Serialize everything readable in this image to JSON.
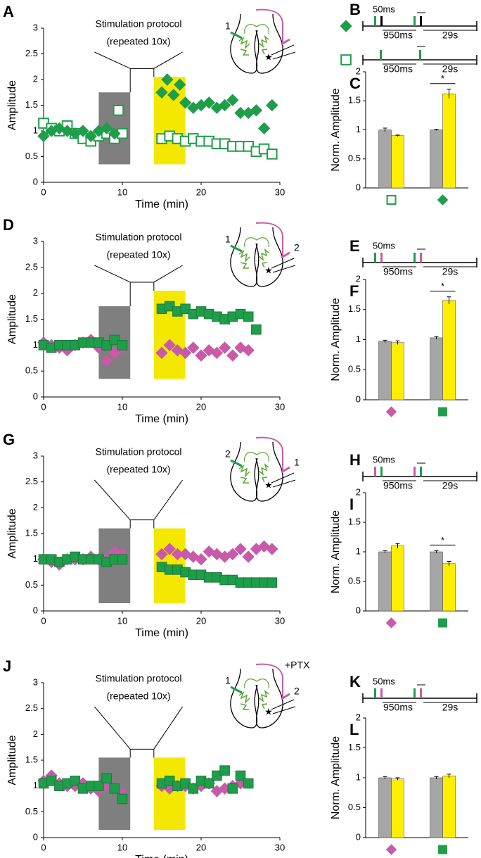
{
  "chart_data": [
    {
      "type": "scatter",
      "panel_label": "A",
      "xlabel": "Time (min)",
      "ylabel": "Amplitude",
      "xlim": [
        0,
        30
      ],
      "xticks": [
        0,
        10,
        20,
        30
      ],
      "ylim": [
        0,
        3
      ],
      "yticks": [
        0,
        0.5,
        1,
        1.5,
        2,
        2.5,
        3
      ],
      "annotations": [
        "Stimulation protocol",
        "(repeated 10x)"
      ],
      "schematic_labels": [
        "1"
      ],
      "spans": [
        {
          "xmin": 7,
          "xmax": 11,
          "ymin": 0.35,
          "ymax": 1.75,
          "color": "#7f7f7f"
        },
        {
          "xmin": 14,
          "xmax": 18,
          "ymin": 0.35,
          "ymax": 2.05,
          "color": "#f4e800"
        }
      ],
      "series": [
        {
          "marker": "square",
          "color": "#1e9e4a",
          "fill": "#ffffff",
          "x": [
            0,
            1,
            2,
            3,
            4,
            5,
            6,
            7,
            8,
            9,
            9.5,
            10,
            15,
            16,
            17,
            18,
            19,
            20,
            21,
            22,
            23,
            24,
            25,
            26,
            27,
            28,
            29
          ],
          "values": [
            1.15,
            1.05,
            1.0,
            1.1,
            0.95,
            0.85,
            0.8,
            0.9,
            0.95,
            0.85,
            1.4,
            0.95,
            0.85,
            0.9,
            0.85,
            0.8,
            0.85,
            0.8,
            0.8,
            0.75,
            0.75,
            0.7,
            0.7,
            0.7,
            0.6,
            0.65,
            0.55
          ]
        },
        {
          "marker": "diamond",
          "color": "#1e9e4a",
          "fill": "#1e9e4a",
          "x": [
            0,
            1,
            2,
            3,
            4,
            5,
            6,
            7,
            8,
            9,
            15,
            15.7,
            16.5,
            17.3,
            18,
            19,
            20,
            21,
            22,
            23,
            24,
            25,
            26,
            27,
            28,
            29
          ],
          "values": [
            0.9,
            1.0,
            1.05,
            1.0,
            0.95,
            1.0,
            0.9,
            1.0,
            1.05,
            0.95,
            1.75,
            2.0,
            1.7,
            1.9,
            1.55,
            1.45,
            1.5,
            1.55,
            1.45,
            1.5,
            1.6,
            1.35,
            1.35,
            1.4,
            1.05,
            1.5
          ]
        }
      ]
    },
    {
      "type": "bar",
      "panel_label": "C",
      "ylabel": "Norm. Amplitude",
      "ylim": [
        0,
        2
      ],
      "yticks": [
        0,
        0.5,
        1,
        1.5,
        2
      ],
      "categories": [
        null,
        null
      ],
      "category_markers": [
        {
          "marker": "square",
          "color": "#1e9e4a",
          "fill": "#ffffff"
        },
        {
          "marker": "diamond",
          "color": "#1e9e4a",
          "fill": "#1e9e4a"
        }
      ],
      "series": [
        {
          "color": "#a6a6a6",
          "values": [
            1.0,
            1.0
          ],
          "errors": [
            0.03,
            0.01
          ]
        },
        {
          "color": "#ffee00",
          "values": [
            0.9,
            1.62
          ],
          "errors": [
            0.01,
            0.08
          ]
        }
      ],
      "significance": {
        "category": 1,
        "label": "*"
      }
    },
    {
      "type": "scatter",
      "panel_label": "D",
      "xlabel": "Time (min)",
      "ylabel": "Amplitude",
      "xlim": [
        0,
        30
      ],
      "xticks": [
        0,
        10,
        20,
        30
      ],
      "ylim": [
        0,
        3
      ],
      "yticks": [
        0,
        0.5,
        1,
        1.5,
        2,
        2.5,
        3
      ],
      "annotations": [
        "Stimulation protocol",
        "(repeated 10x)"
      ],
      "schematic_labels": [
        "1",
        "2"
      ],
      "spans": [
        {
          "xmin": 7,
          "xmax": 11,
          "ymin": 0.35,
          "ymax": 1.75,
          "color": "#7f7f7f"
        },
        {
          "xmin": 14,
          "xmax": 18,
          "ymin": 0.35,
          "ymax": 2.05,
          "color": "#f4e800"
        }
      ],
      "series": [
        {
          "marker": "diamond",
          "color": "#c95aa9",
          "fill": "#c95aa9",
          "x": [
            0,
            1,
            2,
            3,
            4,
            5,
            6,
            7,
            8,
            9,
            10,
            15,
            16,
            17,
            18,
            19,
            20,
            21,
            22,
            23,
            24,
            25,
            26
          ],
          "values": [
            1.05,
            1.0,
            0.95,
            0.9,
            1.0,
            1.05,
            1.1,
            0.95,
            0.7,
            0.85,
            0.95,
            0.85,
            1.0,
            0.9,
            0.85,
            0.95,
            0.8,
            0.9,
            0.85,
            0.95,
            0.8,
            0.95,
            0.9
          ]
        },
        {
          "marker": "square",
          "color": "#1a7a38",
          "fill": "#1e9e4a",
          "x": [
            0,
            1,
            2,
            3,
            4,
            5,
            6,
            7,
            8,
            9,
            10,
            15,
            16,
            17,
            18,
            19,
            20,
            21,
            22,
            23,
            24,
            25,
            26,
            27
          ],
          "values": [
            1.0,
            0.95,
            1.0,
            1.0,
            1.0,
            1.05,
            1.05,
            1.05,
            1.0,
            1.1,
            1.0,
            1.7,
            1.75,
            1.65,
            1.7,
            1.6,
            1.65,
            1.6,
            1.55,
            1.5,
            1.55,
            1.6,
            1.55,
            1.3
          ]
        }
      ]
    },
    {
      "type": "bar",
      "panel_label": "F",
      "ylabel": "Norm. Amplitude",
      "ylim": [
        0,
        2
      ],
      "yticks": [
        0,
        0.5,
        1,
        1.5,
        2
      ],
      "categories": [
        null,
        null
      ],
      "category_markers": [
        {
          "marker": "diamond",
          "color": "#c95aa9",
          "fill": "#c95aa9"
        },
        {
          "marker": "square",
          "color": "#1e9e4a",
          "fill": "#1e9e4a"
        }
      ],
      "series": [
        {
          "color": "#a6a6a6",
          "values": [
            0.97,
            1.03
          ],
          "errors": [
            0.02,
            0.02
          ]
        },
        {
          "color": "#ffee00",
          "values": [
            0.95,
            1.65
          ],
          "errors": [
            0.03,
            0.06
          ]
        }
      ],
      "significance": {
        "category": 1,
        "label": "*"
      }
    },
    {
      "type": "scatter",
      "panel_label": "G",
      "xlabel": "Time (min)",
      "ylabel": "Amplitude",
      "xlim": [
        0,
        30
      ],
      "xticks": [
        0,
        10,
        20,
        30
      ],
      "ylim": [
        0,
        3
      ],
      "yticks": [
        0,
        0.5,
        1,
        1.5,
        2,
        2.5,
        3
      ],
      "annotations": [
        "Stimulation protocol",
        "(repeated 10x)"
      ],
      "schematic_labels": [
        "2",
        "1"
      ],
      "spans": [
        {
          "xmin": 7,
          "xmax": 11,
          "ymin": 0.15,
          "ymax": 1.6,
          "color": "#7f7f7f"
        },
        {
          "xmin": 14,
          "xmax": 18,
          "ymin": 0.15,
          "ymax": 1.6,
          "color": "#f4e800"
        }
      ],
      "series": [
        {
          "marker": "diamond",
          "color": "#c95aa9",
          "fill": "#c95aa9",
          "x": [
            0,
            1,
            2,
            3,
            4,
            5,
            6,
            7,
            8,
            9,
            10,
            15,
            16,
            17,
            18,
            19,
            20,
            21,
            22,
            23,
            24,
            25,
            26,
            27,
            28,
            29
          ],
          "values": [
            1.0,
            0.95,
            0.9,
            1.0,
            1.0,
            1.0,
            1.05,
            1.0,
            1.0,
            1.15,
            1.1,
            1.1,
            1.2,
            1.1,
            1.1,
            1.05,
            1.0,
            1.15,
            1.1,
            1.05,
            1.1,
            1.2,
            1.05,
            1.2,
            1.25,
            1.2
          ]
        },
        {
          "marker": "square",
          "color": "#1a7a38",
          "fill": "#1e9e4a",
          "x": [
            0,
            1,
            2,
            3,
            4,
            5,
            6,
            7,
            8,
            9,
            10,
            15,
            16,
            17,
            18,
            19,
            20,
            21,
            22,
            23,
            24,
            25,
            26,
            27,
            28,
            29
          ],
          "values": [
            1.0,
            1.0,
            0.95,
            1.0,
            1.05,
            1.0,
            1.0,
            1.0,
            0.95,
            1.0,
            1.0,
            0.85,
            0.8,
            0.8,
            0.75,
            0.7,
            0.7,
            0.65,
            0.65,
            0.6,
            0.6,
            0.55,
            0.55,
            0.55,
            0.55,
            0.55
          ]
        }
      ]
    },
    {
      "type": "bar",
      "panel_label": "I",
      "ylabel": "Norm. Amplitude",
      "ylim": [
        0,
        2
      ],
      "yticks": [
        0,
        0.5,
        1,
        1.5,
        2
      ],
      "categories": [
        null,
        null
      ],
      "category_markers": [
        {
          "marker": "diamond",
          "color": "#c95aa9",
          "fill": "#c95aa9"
        },
        {
          "marker": "square",
          "color": "#1e9e4a",
          "fill": "#1e9e4a"
        }
      ],
      "series": [
        {
          "color": "#a6a6a6",
          "values": [
            1.0,
            1.0
          ],
          "errors": [
            0.02,
            0.02
          ]
        },
        {
          "color": "#ffee00",
          "values": [
            1.1,
            0.8
          ],
          "errors": [
            0.04,
            0.04
          ]
        }
      ],
      "significance": {
        "category": 1,
        "label": "*"
      }
    },
    {
      "type": "scatter",
      "panel_label": "J",
      "xlabel": "Time (min)",
      "ylabel": "Amplitude",
      "xlim": [
        0,
        30
      ],
      "xticks": [
        0,
        10,
        20,
        30
      ],
      "ylim": [
        0,
        3
      ],
      "yticks": [
        0,
        0.5,
        1,
        1.5,
        2,
        2.5,
        3
      ],
      "annotations": [
        "Stimulation protocol",
        "(repeated 10x)"
      ],
      "schematic_labels": [
        "1",
        "2",
        "+PTX"
      ],
      "spans": [
        {
          "xmin": 7,
          "xmax": 11,
          "ymin": 0.15,
          "ymax": 1.55,
          "color": "#7f7f7f"
        },
        {
          "xmin": 14,
          "xmax": 18,
          "ymin": 0.15,
          "ymax": 1.55,
          "color": "#f4e800"
        }
      ],
      "series": [
        {
          "marker": "diamond",
          "color": "#c95aa9",
          "fill": "#c95aa9",
          "x": [
            0,
            1,
            2,
            3,
            4,
            5,
            6,
            7,
            8,
            9,
            10,
            15,
            16,
            17,
            18,
            19,
            20,
            21,
            22,
            23,
            24,
            25
          ],
          "values": [
            1.1,
            1.2,
            1.05,
            1.0,
            1.0,
            1.05,
            0.95,
            0.9,
            1.0,
            0.95,
            0.85,
            1.0,
            0.95,
            1.0,
            1.0,
            0.95,
            1.0,
            1.05,
            0.9,
            0.95,
            1.0,
            1.05
          ]
        },
        {
          "marker": "square",
          "color": "#1a7a38",
          "fill": "#1e9e4a",
          "x": [
            0,
            1,
            2,
            3,
            4,
            5,
            6,
            7,
            8,
            9,
            10,
            15,
            16,
            17,
            18,
            19,
            20,
            21,
            22,
            23,
            24,
            25,
            26
          ],
          "values": [
            1.05,
            1.1,
            1.0,
            1.05,
            1.1,
            0.95,
            1.0,
            1.0,
            1.15,
            0.95,
            0.75,
            1.05,
            1.1,
            1.0,
            1.05,
            0.95,
            1.1,
            1.05,
            1.2,
            1.3,
            0.95,
            1.2,
            1.05
          ]
        }
      ]
    },
    {
      "type": "bar",
      "panel_label": "L",
      "ylabel": "Norm. Amplitude",
      "ylim": [
        0,
        2
      ],
      "yticks": [
        0,
        0.5,
        1,
        1.5,
        2
      ],
      "categories": [
        null,
        null
      ],
      "category_markers": [
        {
          "marker": "diamond",
          "color": "#c95aa9",
          "fill": "#c95aa9"
        },
        {
          "marker": "square",
          "color": "#1e9e4a",
          "fill": "#1e9e4a"
        }
      ],
      "series": [
        {
          "color": "#a6a6a6",
          "values": [
            1.0,
            1.0
          ],
          "errors": [
            0.02,
            0.02
          ]
        },
        {
          "color": "#ffee00",
          "values": [
            0.98,
            1.03
          ],
          "errors": [
            0.02,
            0.03
          ]
        }
      ]
    }
  ],
  "diagrams": [
    {
      "label": "B",
      "rows": [
        {
          "marker": {
            "marker": "diamond",
            "color": "#1e9e4a",
            "fill": "#1e9e4a"
          },
          "pulses": [
            "#1e9e4a",
            "#000000"
          ],
          "gap": "50ms",
          "interval": "950ms",
          "rest": "29s"
        },
        {
          "marker": {
            "marker": "square",
            "color": "#1e9e4a",
            "fill": "#ffffff"
          },
          "pulses": [
            "#1e9e4a"
          ],
          "interval": "950ms",
          "rest": "29s"
        }
      ]
    },
    {
      "label": "E",
      "rows": [
        {
          "pulses": [
            "#1e9e4a",
            "#c95aa9"
          ],
          "gap": "50ms",
          "interval": "950ms",
          "rest": "29s"
        }
      ]
    },
    {
      "label": "H",
      "rows": [
        {
          "pulses": [
            "#c95aa9",
            "#1e9e4a"
          ],
          "gap": "50ms",
          "interval": "950ms",
          "rest": "29s"
        }
      ]
    },
    {
      "label": "K",
      "rows": [
        {
          "pulses": [
            "#1e9e4a",
            "#c95aa9"
          ],
          "gap": "50ms",
          "interval": "950ms",
          "rest": "29s"
        }
      ]
    }
  ]
}
